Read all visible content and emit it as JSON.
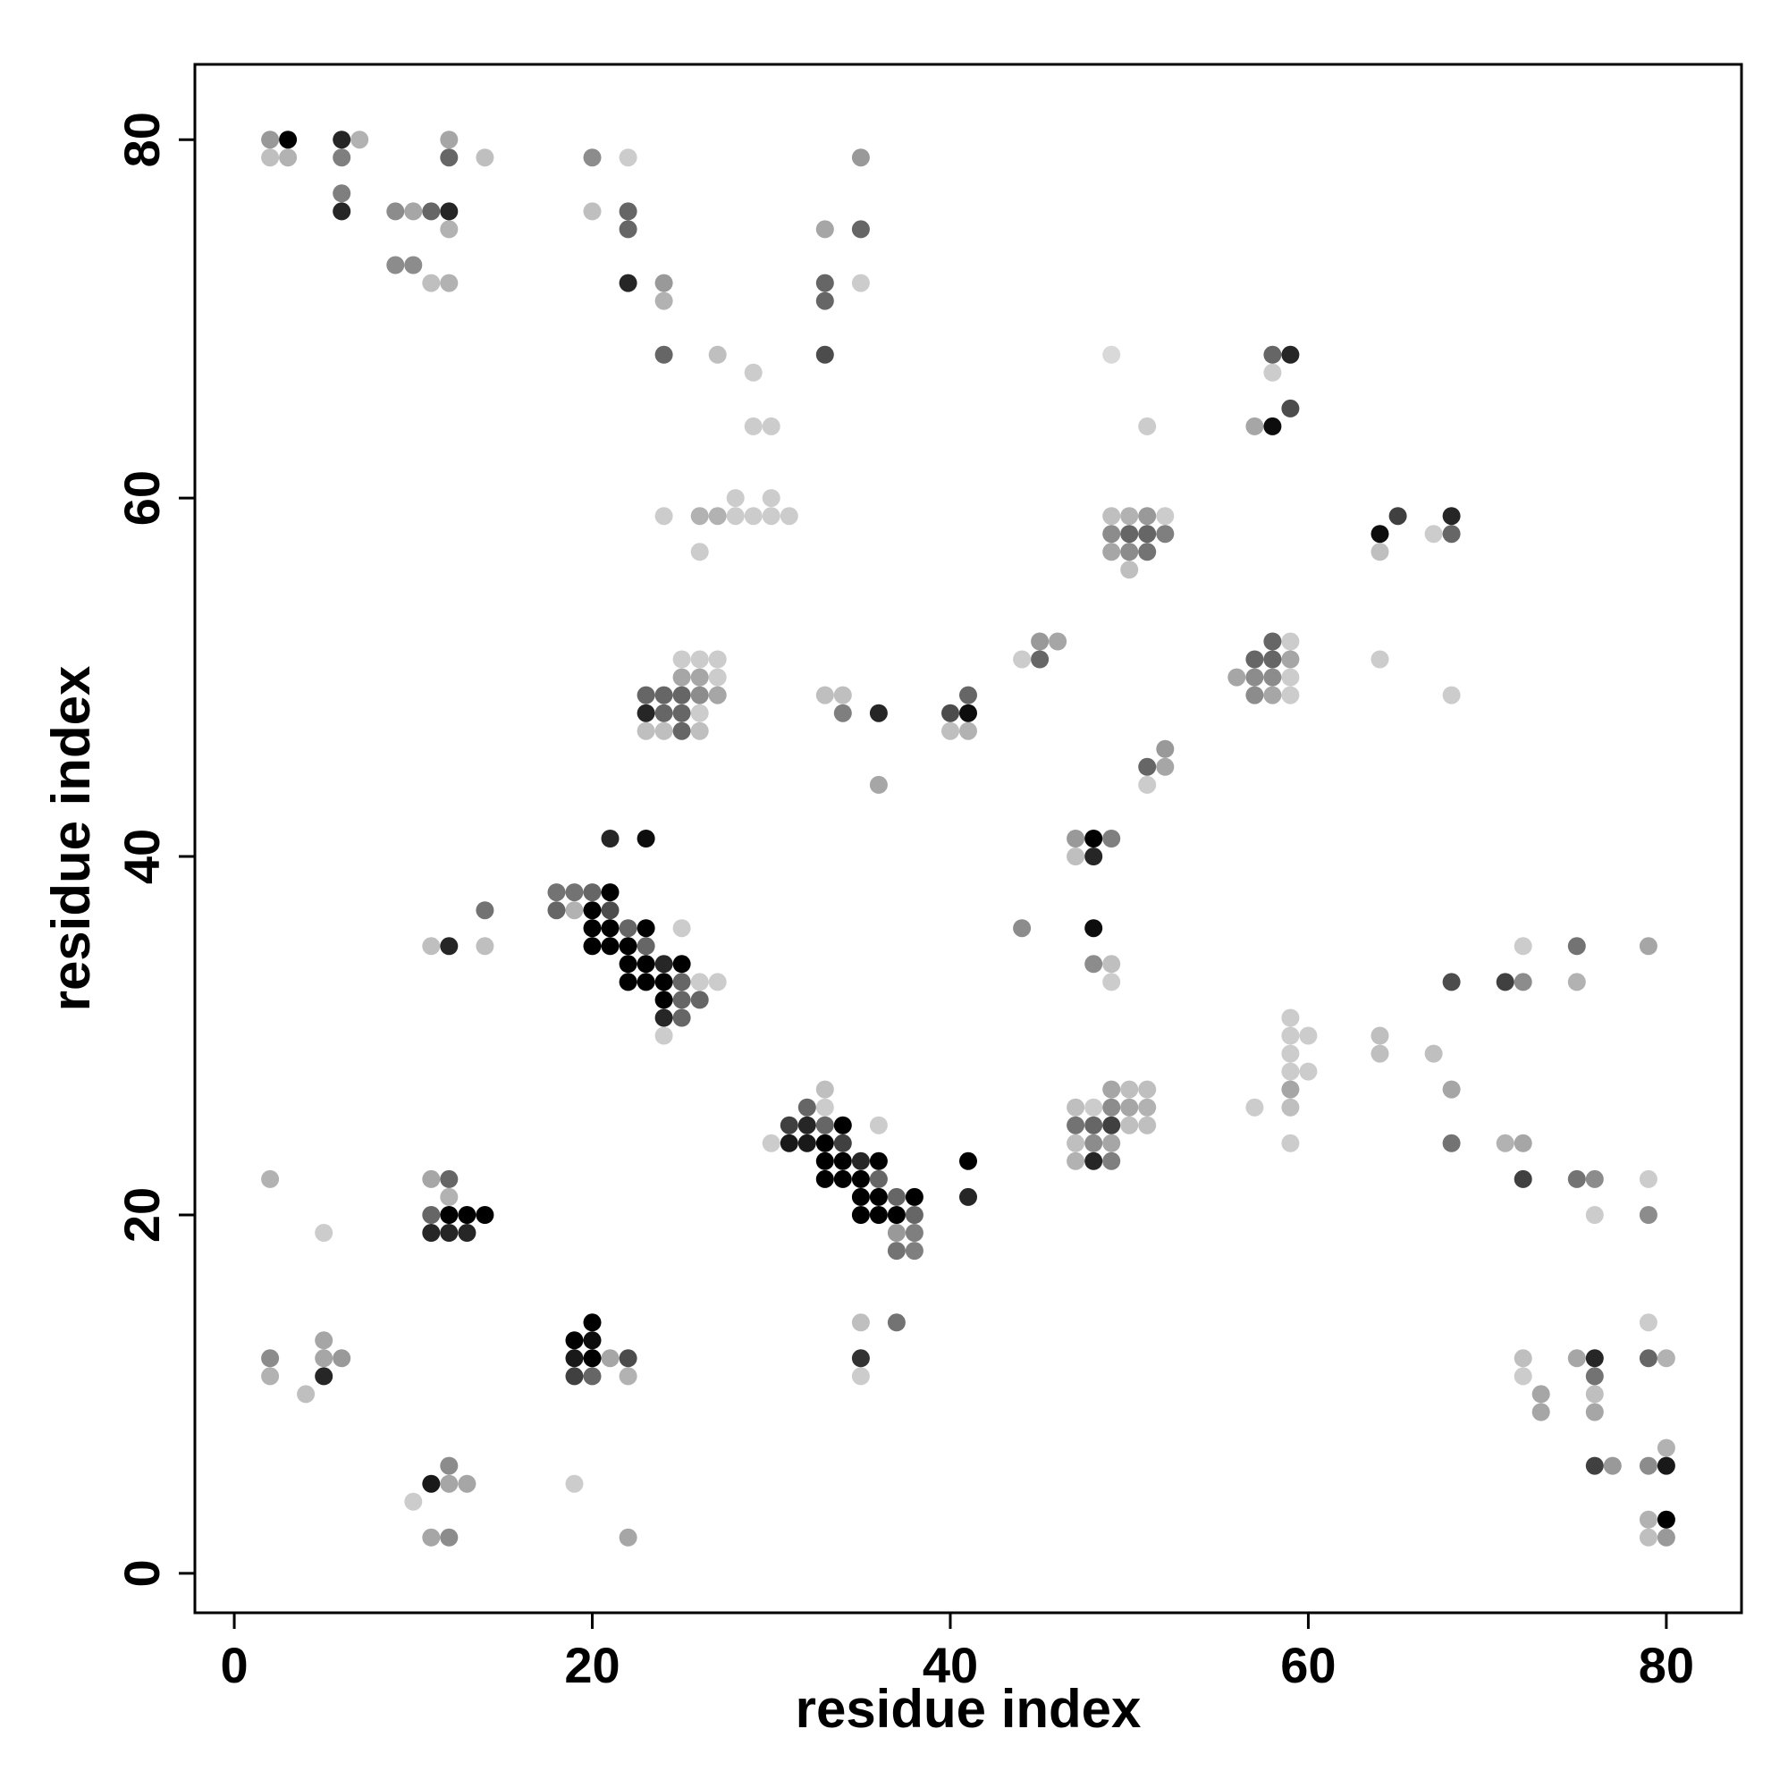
{
  "chart_data": {
    "type": "scatter",
    "title": "",
    "xlabel": "residue index",
    "ylabel": "residue index",
    "xlim": [
      -2.2,
      84.2
    ],
    "ylim": [
      -2.2,
      84.2
    ],
    "xticks": [
      0,
      20,
      40,
      60,
      80
    ],
    "yticks": [
      0,
      20,
      40,
      60,
      80
    ],
    "grid": false,
    "legend": "none",
    "marker_color": "#000000",
    "points": [
      [
        2,
        80,
        0.4
      ],
      [
        3,
        80,
        1.0
      ],
      [
        2,
        79,
        0.25
      ],
      [
        3,
        79,
        0.3
      ],
      [
        6,
        80,
        0.85
      ],
      [
        7,
        80,
        0.3
      ],
      [
        6,
        79,
        0.5
      ],
      [
        6,
        77,
        0.5
      ],
      [
        6,
        76,
        0.85
      ],
      [
        12,
        80,
        0.35
      ],
      [
        12,
        79,
        0.6
      ],
      [
        14,
        79,
        0.25
      ],
      [
        20,
        79,
        0.45
      ],
      [
        22,
        79,
        0.2
      ],
      [
        35,
        79,
        0.4
      ],
      [
        9,
        76,
        0.45
      ],
      [
        10,
        76,
        0.35
      ],
      [
        11,
        76,
        0.6
      ],
      [
        12,
        76,
        0.85
      ],
      [
        12,
        75,
        0.3
      ],
      [
        20,
        76,
        0.25
      ],
      [
        22,
        76,
        0.6
      ],
      [
        22,
        75,
        0.6
      ],
      [
        33,
        75,
        0.35
      ],
      [
        35,
        75,
        0.6
      ],
      [
        9,
        73,
        0.45
      ],
      [
        10,
        73,
        0.45
      ],
      [
        11,
        72,
        0.25
      ],
      [
        12,
        72,
        0.3
      ],
      [
        22,
        72,
        0.85
      ],
      [
        24,
        72,
        0.4
      ],
      [
        24,
        71,
        0.3
      ],
      [
        33,
        72,
        0.6
      ],
      [
        33,
        71,
        0.6
      ],
      [
        35,
        72,
        0.2
      ],
      [
        24,
        68,
        0.6
      ],
      [
        27,
        68,
        0.25
      ],
      [
        33,
        68,
        0.7
      ],
      [
        29,
        67,
        0.2
      ],
      [
        29,
        64,
        0.2
      ],
      [
        30,
        64,
        0.2
      ],
      [
        49,
        68,
        0.15
      ],
      [
        58,
        68,
        0.6
      ],
      [
        59,
        68,
        0.85
      ],
      [
        58,
        67,
        0.2
      ],
      [
        59,
        65,
        0.7
      ],
      [
        57,
        64,
        0.35
      ],
      [
        58,
        64,
        0.95
      ],
      [
        51,
        64,
        0.2
      ],
      [
        28,
        60,
        0.2
      ],
      [
        30,
        60,
        0.2
      ],
      [
        24,
        59,
        0.2
      ],
      [
        26,
        59,
        0.3
      ],
      [
        27,
        59,
        0.3
      ],
      [
        28,
        59,
        0.2
      ],
      [
        29,
        59,
        0.2
      ],
      [
        30,
        59,
        0.2
      ],
      [
        31,
        59,
        0.2
      ],
      [
        26,
        57,
        0.2
      ],
      [
        49,
        59,
        0.25
      ],
      [
        50,
        59,
        0.3
      ],
      [
        51,
        59,
        0.4
      ],
      [
        52,
        59,
        0.2
      ],
      [
        49,
        58,
        0.45
      ],
      [
        50,
        58,
        0.6
      ],
      [
        51,
        58,
        0.6
      ],
      [
        52,
        58,
        0.5
      ],
      [
        49,
        57,
        0.35
      ],
      [
        50,
        57,
        0.45
      ],
      [
        51,
        57,
        0.55
      ],
      [
        50,
        56,
        0.25
      ],
      [
        64,
        58,
        0.95
      ],
      [
        65,
        59,
        0.75
      ],
      [
        64,
        57,
        0.25
      ],
      [
        67,
        58,
        0.2
      ],
      [
        68,
        58,
        0.6
      ],
      [
        68,
        59,
        0.85
      ],
      [
        45,
        52,
        0.4
      ],
      [
        46,
        52,
        0.35
      ],
      [
        44,
        51,
        0.2
      ],
      [
        45,
        51,
        0.6
      ],
      [
        64,
        51,
        0.2
      ],
      [
        58,
        52,
        0.6
      ],
      [
        59,
        52,
        0.2
      ],
      [
        57,
        51,
        0.6
      ],
      [
        58,
        51,
        0.6
      ],
      [
        59,
        51,
        0.35
      ],
      [
        56,
        50,
        0.35
      ],
      [
        57,
        50,
        0.45
      ],
      [
        58,
        50,
        0.45
      ],
      [
        59,
        50,
        0.2
      ],
      [
        57,
        49,
        0.45
      ],
      [
        58,
        49,
        0.35
      ],
      [
        59,
        49,
        0.2
      ],
      [
        68,
        49,
        0.2
      ],
      [
        25,
        51,
        0.2
      ],
      [
        26,
        51,
        0.2
      ],
      [
        27,
        51,
        0.2
      ],
      [
        25,
        50,
        0.35
      ],
      [
        26,
        50,
        0.35
      ],
      [
        27,
        50,
        0.2
      ],
      [
        23,
        49,
        0.6
      ],
      [
        24,
        49,
        0.6
      ],
      [
        25,
        49,
        0.6
      ],
      [
        26,
        49,
        0.45
      ],
      [
        27,
        49,
        0.35
      ],
      [
        23,
        48,
        0.85
      ],
      [
        24,
        48,
        0.6
      ],
      [
        25,
        48,
        0.6
      ],
      [
        26,
        48,
        0.2
      ],
      [
        23,
        47,
        0.25
      ],
      [
        24,
        47,
        0.25
      ],
      [
        25,
        47,
        0.6
      ],
      [
        26,
        47,
        0.25
      ],
      [
        33,
        49,
        0.25
      ],
      [
        34,
        49,
        0.25
      ],
      [
        34,
        48,
        0.5
      ],
      [
        36,
        48,
        0.85
      ],
      [
        36,
        44,
        0.35
      ],
      [
        40,
        48,
        0.7
      ],
      [
        41,
        48,
        0.95
      ],
      [
        41,
        49,
        0.6
      ],
      [
        40,
        47,
        0.25
      ],
      [
        41,
        47,
        0.3
      ],
      [
        52,
        46,
        0.4
      ],
      [
        51,
        45,
        0.6
      ],
      [
        52,
        45,
        0.35
      ],
      [
        51,
        44,
        0.2
      ],
      [
        21,
        41,
        0.85
      ],
      [
        23,
        41,
        0.95
      ],
      [
        47,
        41,
        0.4
      ],
      [
        48,
        41,
        1.0
      ],
      [
        49,
        41,
        0.5
      ],
      [
        47,
        40,
        0.25
      ],
      [
        48,
        40,
        0.85
      ],
      [
        14,
        37,
        0.55
      ],
      [
        11,
        35,
        0.25
      ],
      [
        12,
        35,
        0.85
      ],
      [
        14,
        35,
        0.25
      ],
      [
        18,
        38,
        0.55
      ],
      [
        19,
        38,
        0.55
      ],
      [
        20,
        38,
        0.6
      ],
      [
        21,
        38,
        1.0
      ],
      [
        18,
        37,
        0.6
      ],
      [
        19,
        37,
        0.3
      ],
      [
        20,
        37,
        1.0
      ],
      [
        21,
        37,
        0.7
      ],
      [
        20,
        36,
        1.0
      ],
      [
        21,
        36,
        1.0
      ],
      [
        22,
        36,
        0.6
      ],
      [
        23,
        36,
        1.0
      ],
      [
        25,
        36,
        0.2
      ],
      [
        20,
        35,
        1.0
      ],
      [
        21,
        35,
        1.0
      ],
      [
        22,
        35,
        1.0
      ],
      [
        23,
        35,
        0.6
      ],
      [
        22,
        34,
        1.0
      ],
      [
        23,
        34,
        1.0
      ],
      [
        24,
        34,
        0.85
      ],
      [
        25,
        34,
        1.0
      ],
      [
        22,
        33,
        1.0
      ],
      [
        23,
        33,
        1.0
      ],
      [
        24,
        33,
        1.0
      ],
      [
        25,
        33,
        0.6
      ],
      [
        26,
        33,
        0.2
      ],
      [
        27,
        33,
        0.2
      ],
      [
        24,
        32,
        1.0
      ],
      [
        25,
        32,
        0.6
      ],
      [
        26,
        32,
        0.6
      ],
      [
        24,
        31,
        0.85
      ],
      [
        25,
        31,
        0.6
      ],
      [
        24,
        30,
        0.2
      ],
      [
        44,
        36,
        0.45
      ],
      [
        48,
        36,
        0.95
      ],
      [
        48,
        34,
        0.45
      ],
      [
        49,
        34,
        0.25
      ],
      [
        49,
        33,
        0.2
      ],
      [
        68,
        33,
        0.7
      ],
      [
        71,
        33,
        0.75
      ],
      [
        72,
        33,
        0.45
      ],
      [
        72,
        35,
        0.2
      ],
      [
        75,
        35,
        0.55
      ],
      [
        75,
        33,
        0.3
      ],
      [
        79,
        35,
        0.35
      ],
      [
        59,
        31,
        0.2
      ],
      [
        59,
        30,
        0.2
      ],
      [
        60,
        30,
        0.2
      ],
      [
        59,
        29,
        0.2
      ],
      [
        59,
        28,
        0.2
      ],
      [
        60,
        28,
        0.2
      ],
      [
        59,
        27,
        0.35
      ],
      [
        59,
        26,
        0.25
      ],
      [
        57,
        26,
        0.2
      ],
      [
        59,
        24,
        0.2
      ],
      [
        64,
        30,
        0.25
      ],
      [
        64,
        29,
        0.25
      ],
      [
        67,
        29,
        0.25
      ],
      [
        68,
        27,
        0.35
      ],
      [
        68,
        24,
        0.55
      ],
      [
        71,
        24,
        0.3
      ],
      [
        72,
        24,
        0.35
      ],
      [
        49,
        27,
        0.35
      ],
      [
        50,
        27,
        0.25
      ],
      [
        51,
        27,
        0.25
      ],
      [
        47,
        26,
        0.25
      ],
      [
        48,
        26,
        0.2
      ],
      [
        49,
        26,
        0.45
      ],
      [
        50,
        26,
        0.35
      ],
      [
        51,
        26,
        0.3
      ],
      [
        47,
        25,
        0.55
      ],
      [
        48,
        25,
        0.6
      ],
      [
        49,
        25,
        0.75
      ],
      [
        50,
        25,
        0.25
      ],
      [
        51,
        25,
        0.25
      ],
      [
        47,
        24,
        0.25
      ],
      [
        48,
        24,
        0.45
      ],
      [
        49,
        24,
        0.35
      ],
      [
        47,
        23,
        0.3
      ],
      [
        48,
        23,
        0.85
      ],
      [
        49,
        23,
        0.5
      ],
      [
        33,
        27,
        0.25
      ],
      [
        32,
        26,
        0.6
      ],
      [
        33,
        26,
        0.2
      ],
      [
        31,
        25,
        0.75
      ],
      [
        32,
        25,
        0.85
      ],
      [
        33,
        25,
        0.6
      ],
      [
        34,
        25,
        1.0
      ],
      [
        36,
        25,
        0.2
      ],
      [
        30,
        24,
        0.2
      ],
      [
        31,
        24,
        0.9
      ],
      [
        32,
        24,
        0.9
      ],
      [
        33,
        24,
        1.0
      ],
      [
        34,
        24,
        0.75
      ],
      [
        33,
        23,
        1.0
      ],
      [
        34,
        23,
        1.0
      ],
      [
        35,
        23,
        0.85
      ],
      [
        36,
        23,
        1.0
      ],
      [
        41,
        23,
        1.0
      ],
      [
        33,
        22,
        1.0
      ],
      [
        34,
        22,
        1.0
      ],
      [
        35,
        22,
        1.0
      ],
      [
        36,
        22,
        0.6
      ],
      [
        35,
        21,
        1.0
      ],
      [
        36,
        21,
        1.0
      ],
      [
        37,
        21,
        0.6
      ],
      [
        38,
        21,
        1.0
      ],
      [
        41,
        21,
        0.85
      ],
      [
        35,
        20,
        1.0
      ],
      [
        36,
        20,
        1.0
      ],
      [
        37,
        20,
        1.0
      ],
      [
        38,
        20,
        0.6
      ],
      [
        37,
        19,
        0.4
      ],
      [
        38,
        19,
        0.5
      ],
      [
        37,
        18,
        0.55
      ],
      [
        38,
        18,
        0.5
      ],
      [
        2,
        22,
        0.3
      ],
      [
        11,
        22,
        0.35
      ],
      [
        12,
        22,
        0.6
      ],
      [
        12,
        21,
        0.3
      ],
      [
        11,
        20,
        0.6
      ],
      [
        12,
        20,
        1.0
      ],
      [
        13,
        20,
        1.0
      ],
      [
        14,
        20,
        1.0
      ],
      [
        5,
        19,
        0.2
      ],
      [
        11,
        19,
        0.85
      ],
      [
        12,
        19,
        0.85
      ],
      [
        13,
        19,
        0.85
      ],
      [
        72,
        22,
        0.75
      ],
      [
        75,
        22,
        0.55
      ],
      [
        76,
        22,
        0.45
      ],
      [
        79,
        22,
        0.2
      ],
      [
        76,
        20,
        0.2
      ],
      [
        79,
        20,
        0.45
      ],
      [
        20,
        14,
        1.0
      ],
      [
        35,
        14,
        0.25
      ],
      [
        37,
        14,
        0.55
      ],
      [
        79,
        14,
        0.2
      ],
      [
        19,
        13,
        1.0
      ],
      [
        20,
        13,
        0.95
      ],
      [
        5,
        13,
        0.35
      ],
      [
        2,
        12,
        0.45
      ],
      [
        5,
        12,
        0.35
      ],
      [
        6,
        12,
        0.4
      ],
      [
        19,
        12,
        0.9
      ],
      [
        20,
        12,
        1.0
      ],
      [
        21,
        12,
        0.35
      ],
      [
        22,
        12,
        0.7
      ],
      [
        35,
        12,
        0.8
      ],
      [
        72,
        12,
        0.25
      ],
      [
        75,
        12,
        0.35
      ],
      [
        76,
        12,
        0.85
      ],
      [
        79,
        12,
        0.6
      ],
      [
        80,
        12,
        0.3
      ],
      [
        2,
        11,
        0.3
      ],
      [
        5,
        11,
        0.85
      ],
      [
        19,
        11,
        0.75
      ],
      [
        20,
        11,
        0.6
      ],
      [
        22,
        11,
        0.3
      ],
      [
        35,
        11,
        0.2
      ],
      [
        72,
        11,
        0.2
      ],
      [
        76,
        11,
        0.55
      ],
      [
        4,
        10,
        0.25
      ],
      [
        73,
        10,
        0.35
      ],
      [
        76,
        10,
        0.25
      ],
      [
        73,
        9,
        0.35
      ],
      [
        76,
        9,
        0.35
      ],
      [
        80,
        7,
        0.3
      ],
      [
        12,
        6,
        0.45
      ],
      [
        76,
        6,
        0.75
      ],
      [
        77,
        6,
        0.4
      ],
      [
        79,
        6,
        0.45
      ],
      [
        80,
        6,
        0.9
      ],
      [
        11,
        5,
        0.9
      ],
      [
        12,
        5,
        0.35
      ],
      [
        13,
        5,
        0.35
      ],
      [
        19,
        5,
        0.2
      ],
      [
        10,
        4,
        0.2
      ],
      [
        79,
        3,
        0.3
      ],
      [
        80,
        3,
        1.0
      ],
      [
        11,
        2,
        0.35
      ],
      [
        12,
        2,
        0.45
      ],
      [
        22,
        2,
        0.35
      ],
      [
        79,
        2,
        0.25
      ],
      [
        80,
        2,
        0.4
      ]
    ]
  }
}
